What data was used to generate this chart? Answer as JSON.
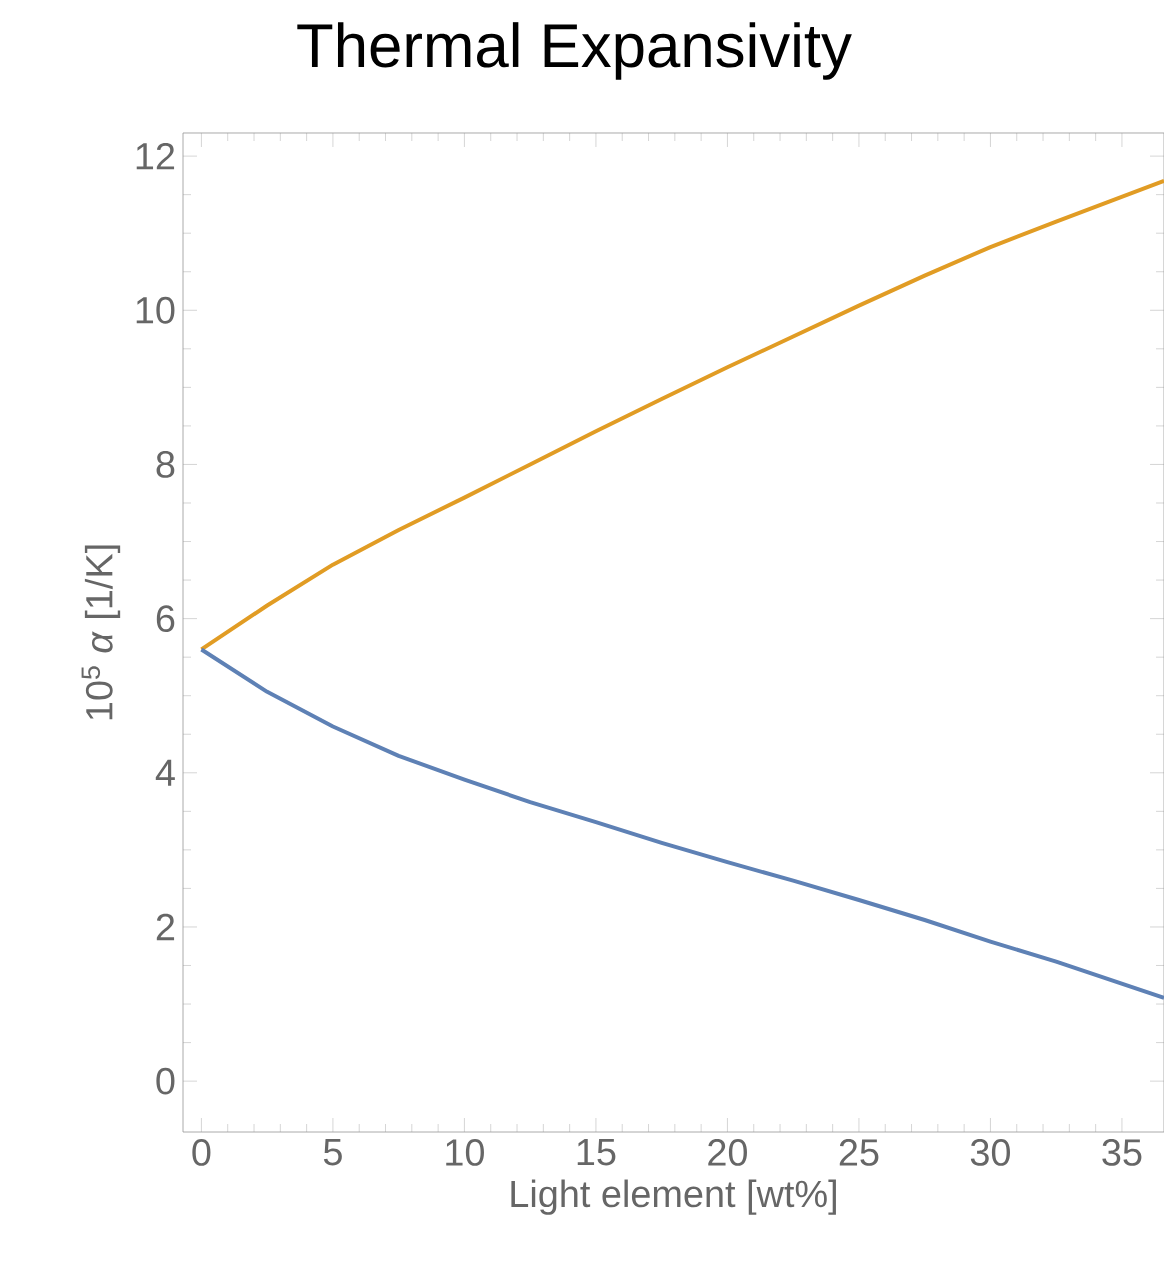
{
  "chart_data": {
    "type": "line",
    "title": "Thermal Expansivity",
    "xlabel": "Light element [wt%]",
    "ylabel": "10$^{5}$ *α* [1/K]",
    "xlim": [
      -0.7,
      36.6
    ],
    "ylim": [
      -0.66,
      12.3
    ],
    "xticks": [
      0,
      5,
      10,
      15,
      20,
      25,
      30,
      35
    ],
    "yticks": [
      0,
      2,
      4,
      6,
      8,
      10,
      12
    ],
    "grid": false,
    "legend": false,
    "marker": "none",
    "line_style": "solid",
    "series": [
      {
        "color": "#e19c24",
        "x": [
          0,
          2.5,
          5,
          7.5,
          10,
          12.5,
          15,
          17.5,
          20,
          22.5,
          25,
          27.5,
          30,
          32.5,
          36.6
        ],
        "values": [
          5.6,
          6.17,
          6.7,
          7.15,
          7.57,
          8.0,
          8.43,
          8.85,
          9.26,
          9.66,
          10.06,
          10.45,
          10.82,
          11.15,
          11.68
        ]
      },
      {
        "color": "#5e81b5",
        "x": [
          0,
          2.5,
          5,
          7.5,
          10,
          12.5,
          15,
          17.5,
          20,
          22.5,
          25,
          27.5,
          30,
          32.5,
          36.6
        ],
        "values": [
          5.6,
          5.05,
          4.6,
          4.22,
          3.91,
          3.62,
          3.36,
          3.09,
          2.84,
          2.6,
          2.35,
          2.09,
          1.81,
          1.55,
          1.08
        ]
      }
    ]
  }
}
